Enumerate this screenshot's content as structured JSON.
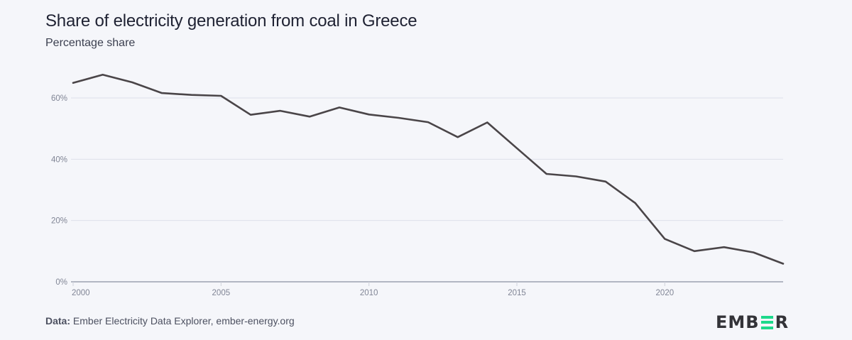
{
  "title": "Share of electricity generation from coal in Greece",
  "subtitle": "Percentage share",
  "footer": {
    "label": "Data:",
    "source": "Ember Electricity Data Explorer, ember-energy.org"
  },
  "logo": {
    "text_left": "EMB",
    "text_right": "R",
    "accent_color": "#1dd98b"
  },
  "colors": {
    "line": "#4a4548",
    "grid": "#dde0ea",
    "axis": "#8a8fa0"
  },
  "chart_data": {
    "type": "line",
    "title": "Share of electricity generation from coal in Greece",
    "subtitle": "Percentage share",
    "xlabel": "",
    "ylabel": "",
    "x": [
      2000,
      2001,
      2002,
      2003,
      2004,
      2005,
      2006,
      2007,
      2008,
      2009,
      2010,
      2011,
      2012,
      2013,
      2014,
      2015,
      2016,
      2017,
      2018,
      2019,
      2020,
      2021,
      2022,
      2023,
      2024
    ],
    "series": [
      {
        "name": "Coal",
        "values": [
          64.9,
          67.6,
          65.1,
          61.6,
          61.0,
          60.7,
          54.5,
          55.8,
          53.9,
          56.9,
          54.6,
          53.5,
          52.1,
          47.2,
          52.0,
          43.6,
          35.2,
          34.4,
          32.7,
          25.7,
          14.0,
          10.0,
          11.3,
          9.6,
          5.9
        ]
      }
    ],
    "xlim": [
      2000,
      2024
    ],
    "ylim": [
      0,
      70
    ],
    "x_ticks": [
      2000,
      2005,
      2010,
      2015,
      2020
    ],
    "x_tick_labels": [
      "2000",
      "2005",
      "2010",
      "2015",
      "2020"
    ],
    "y_ticks": [
      0,
      20,
      40,
      60
    ],
    "y_tick_labels": [
      "0%",
      "20%",
      "40%",
      "60%"
    ],
    "grid": true,
    "legend": "none"
  }
}
